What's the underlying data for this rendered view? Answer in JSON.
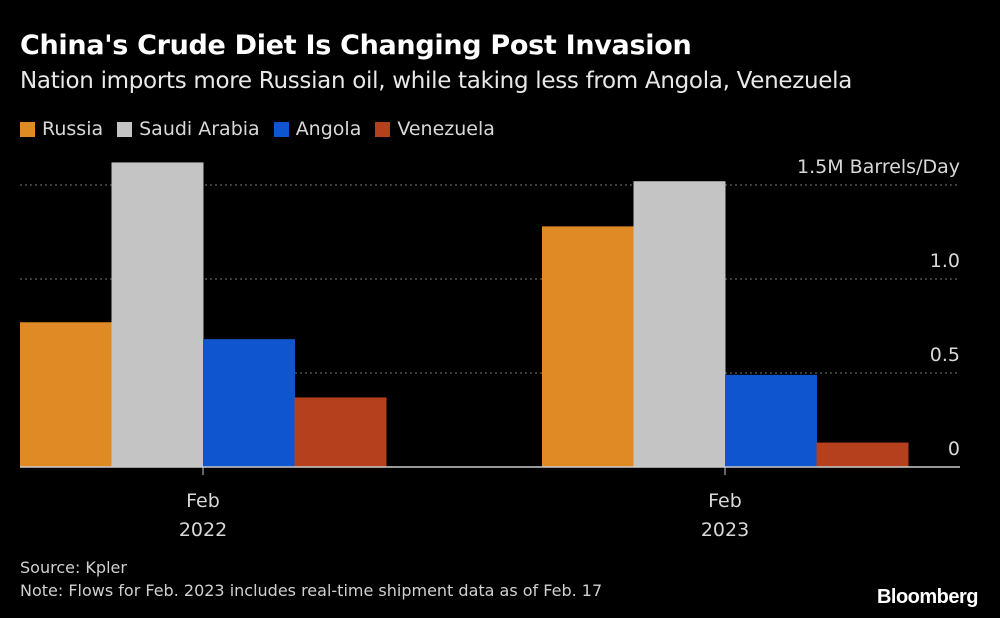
{
  "title": "China's Crude Diet Is Changing Post Invasion",
  "subtitle": "Nation imports more Russian oil, while taking less from Angola, Venezuela",
  "source": "Source: Kpler",
  "note": "Note: Flows for Feb. 2023 includes real-time shipment data as of Feb. 17",
  "logo": "Bloomberg",
  "chart_data": {
    "type": "bar",
    "categories": [
      [
        "Feb",
        "2022"
      ],
      [
        "Feb",
        "2023"
      ]
    ],
    "series": [
      {
        "name": "Russia",
        "color": "#e08a25",
        "values": [
          0.77,
          1.28
        ]
      },
      {
        "name": "Saudi Arabia",
        "color": "#c4c4c4",
        "values": [
          1.62,
          1.52
        ]
      },
      {
        "name": "Angola",
        "color": "#0e55cf",
        "values": [
          0.68,
          0.49
        ]
      },
      {
        "name": "Venezuela",
        "color": "#b5401e",
        "values": [
          0.37,
          0.13
        ]
      }
    ],
    "yticks": [
      {
        "value": 0,
        "label": "0"
      },
      {
        "value": 0.5,
        "label": "0.5"
      },
      {
        "value": 1.0,
        "label": "1.0"
      },
      {
        "value": 1.5,
        "label": "1.5M Barrels/Day"
      }
    ],
    "ylim": [
      0,
      1.62
    ],
    "grid": true,
    "legend": "top-left"
  }
}
